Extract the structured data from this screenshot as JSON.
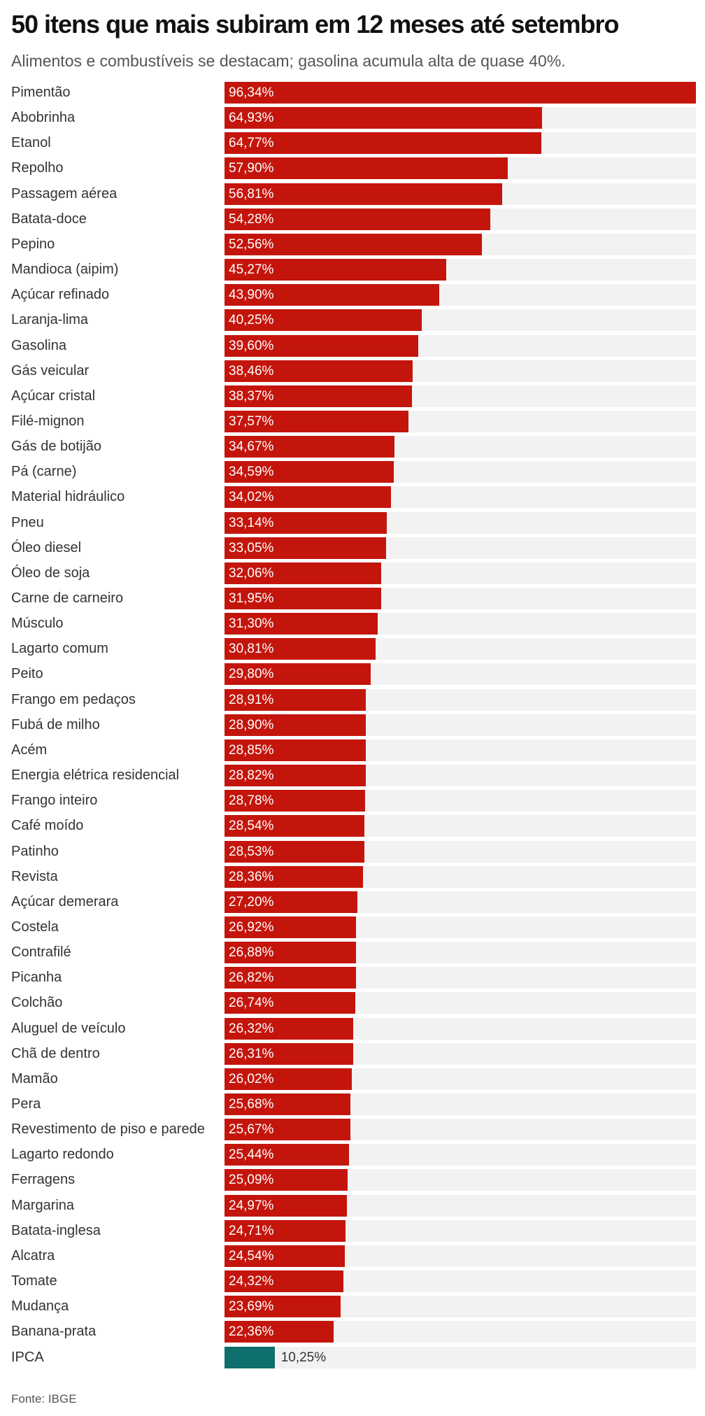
{
  "title": "50 itens que mais subiram em 12 meses até setembro",
  "subtitle": "Alimentos e combustíveis se destacam; gasolina acumula alta de quase 40%.",
  "source": "Fonte: IBGE",
  "colors": {
    "bar": "#c4150c",
    "highlight": "#0e6f6c",
    "track": "#f2f2f2"
  },
  "chart_data": {
    "type": "bar",
    "orientation": "horizontal",
    "title": "50 itens que mais subiram em 12 meses até setembro",
    "subtitle": "Alimentos e combustíveis se destacam; gasolina acumula alta de quase 40%.",
    "xlim": [
      0,
      96.34
    ],
    "grid": false,
    "legend": "none",
    "categories": [
      "Pimentão",
      "Abobrinha",
      "Etanol",
      "Repolho",
      "Passagem aérea",
      "Batata-doce",
      "Pepino",
      "Mandioca (aipim)",
      "Açúcar refinado",
      "Laranja-lima",
      "Gasolina",
      "Gás veicular",
      "Açúcar cristal",
      "Filé-mignon",
      "Gás de botijão",
      "Pá (carne)",
      "Material hidráulico",
      "Pneu",
      "Óleo diesel",
      "Óleo de soja",
      "Carne de carneiro",
      "Músculo",
      "Lagarto comum",
      "Peito",
      "Frango em pedaços",
      "Fubá de milho",
      "Acém",
      "Energia elétrica residencial",
      "Frango inteiro",
      "Café moído",
      "Patinho",
      "Revista",
      "Açúcar demerara",
      "Costela",
      "Contrafilé",
      "Picanha",
      "Colchão",
      "Aluguel de veículo",
      "Chã de dentro",
      "Mamão",
      "Pera",
      "Revestimento de piso e parede",
      "Lagarto redondo",
      "Ferragens",
      "Margarina",
      "Batata-inglesa",
      "Alcatra",
      "Tomate",
      "Mudança",
      "Banana-prata",
      "IPCA"
    ],
    "values": [
      96.34,
      64.93,
      64.77,
      57.9,
      56.81,
      54.28,
      52.56,
      45.27,
      43.9,
      40.25,
      39.6,
      38.46,
      38.37,
      37.57,
      34.67,
      34.59,
      34.02,
      33.14,
      33.05,
      32.06,
      31.95,
      31.3,
      30.81,
      29.8,
      28.91,
      28.9,
      28.85,
      28.82,
      28.78,
      28.54,
      28.53,
      28.36,
      27.2,
      26.92,
      26.88,
      26.82,
      26.74,
      26.32,
      26.31,
      26.02,
      25.68,
      25.67,
      25.44,
      25.09,
      24.97,
      24.71,
      24.54,
      24.32,
      23.69,
      22.36,
      10.25
    ],
    "value_labels": [
      "96,34%",
      "64,93%",
      "64,77%",
      "57,90%",
      "56,81%",
      "54,28%",
      "52,56%",
      "45,27%",
      "43,90%",
      "40,25%",
      "39,60%",
      "38,46%",
      "38,37%",
      "37,57%",
      "34,67%",
      "34,59%",
      "34,02%",
      "33,14%",
      "33,05%",
      "32,06%",
      "31,95%",
      "31,30%",
      "30,81%",
      "29,80%",
      "28,91%",
      "28,90%",
      "28,85%",
      "28,82%",
      "28,78%",
      "28,54%",
      "28,53%",
      "28,36%",
      "27,20%",
      "26,92%",
      "26,88%",
      "26,82%",
      "26,74%",
      "26,32%",
      "26,31%",
      "26,02%",
      "25,68%",
      "25,67%",
      "25,44%",
      "25,09%",
      "24,97%",
      "24,71%",
      "24,54%",
      "24,32%",
      "23,69%",
      "22,36%",
      "10,25%"
    ],
    "highlight": [
      "IPCA"
    ]
  }
}
